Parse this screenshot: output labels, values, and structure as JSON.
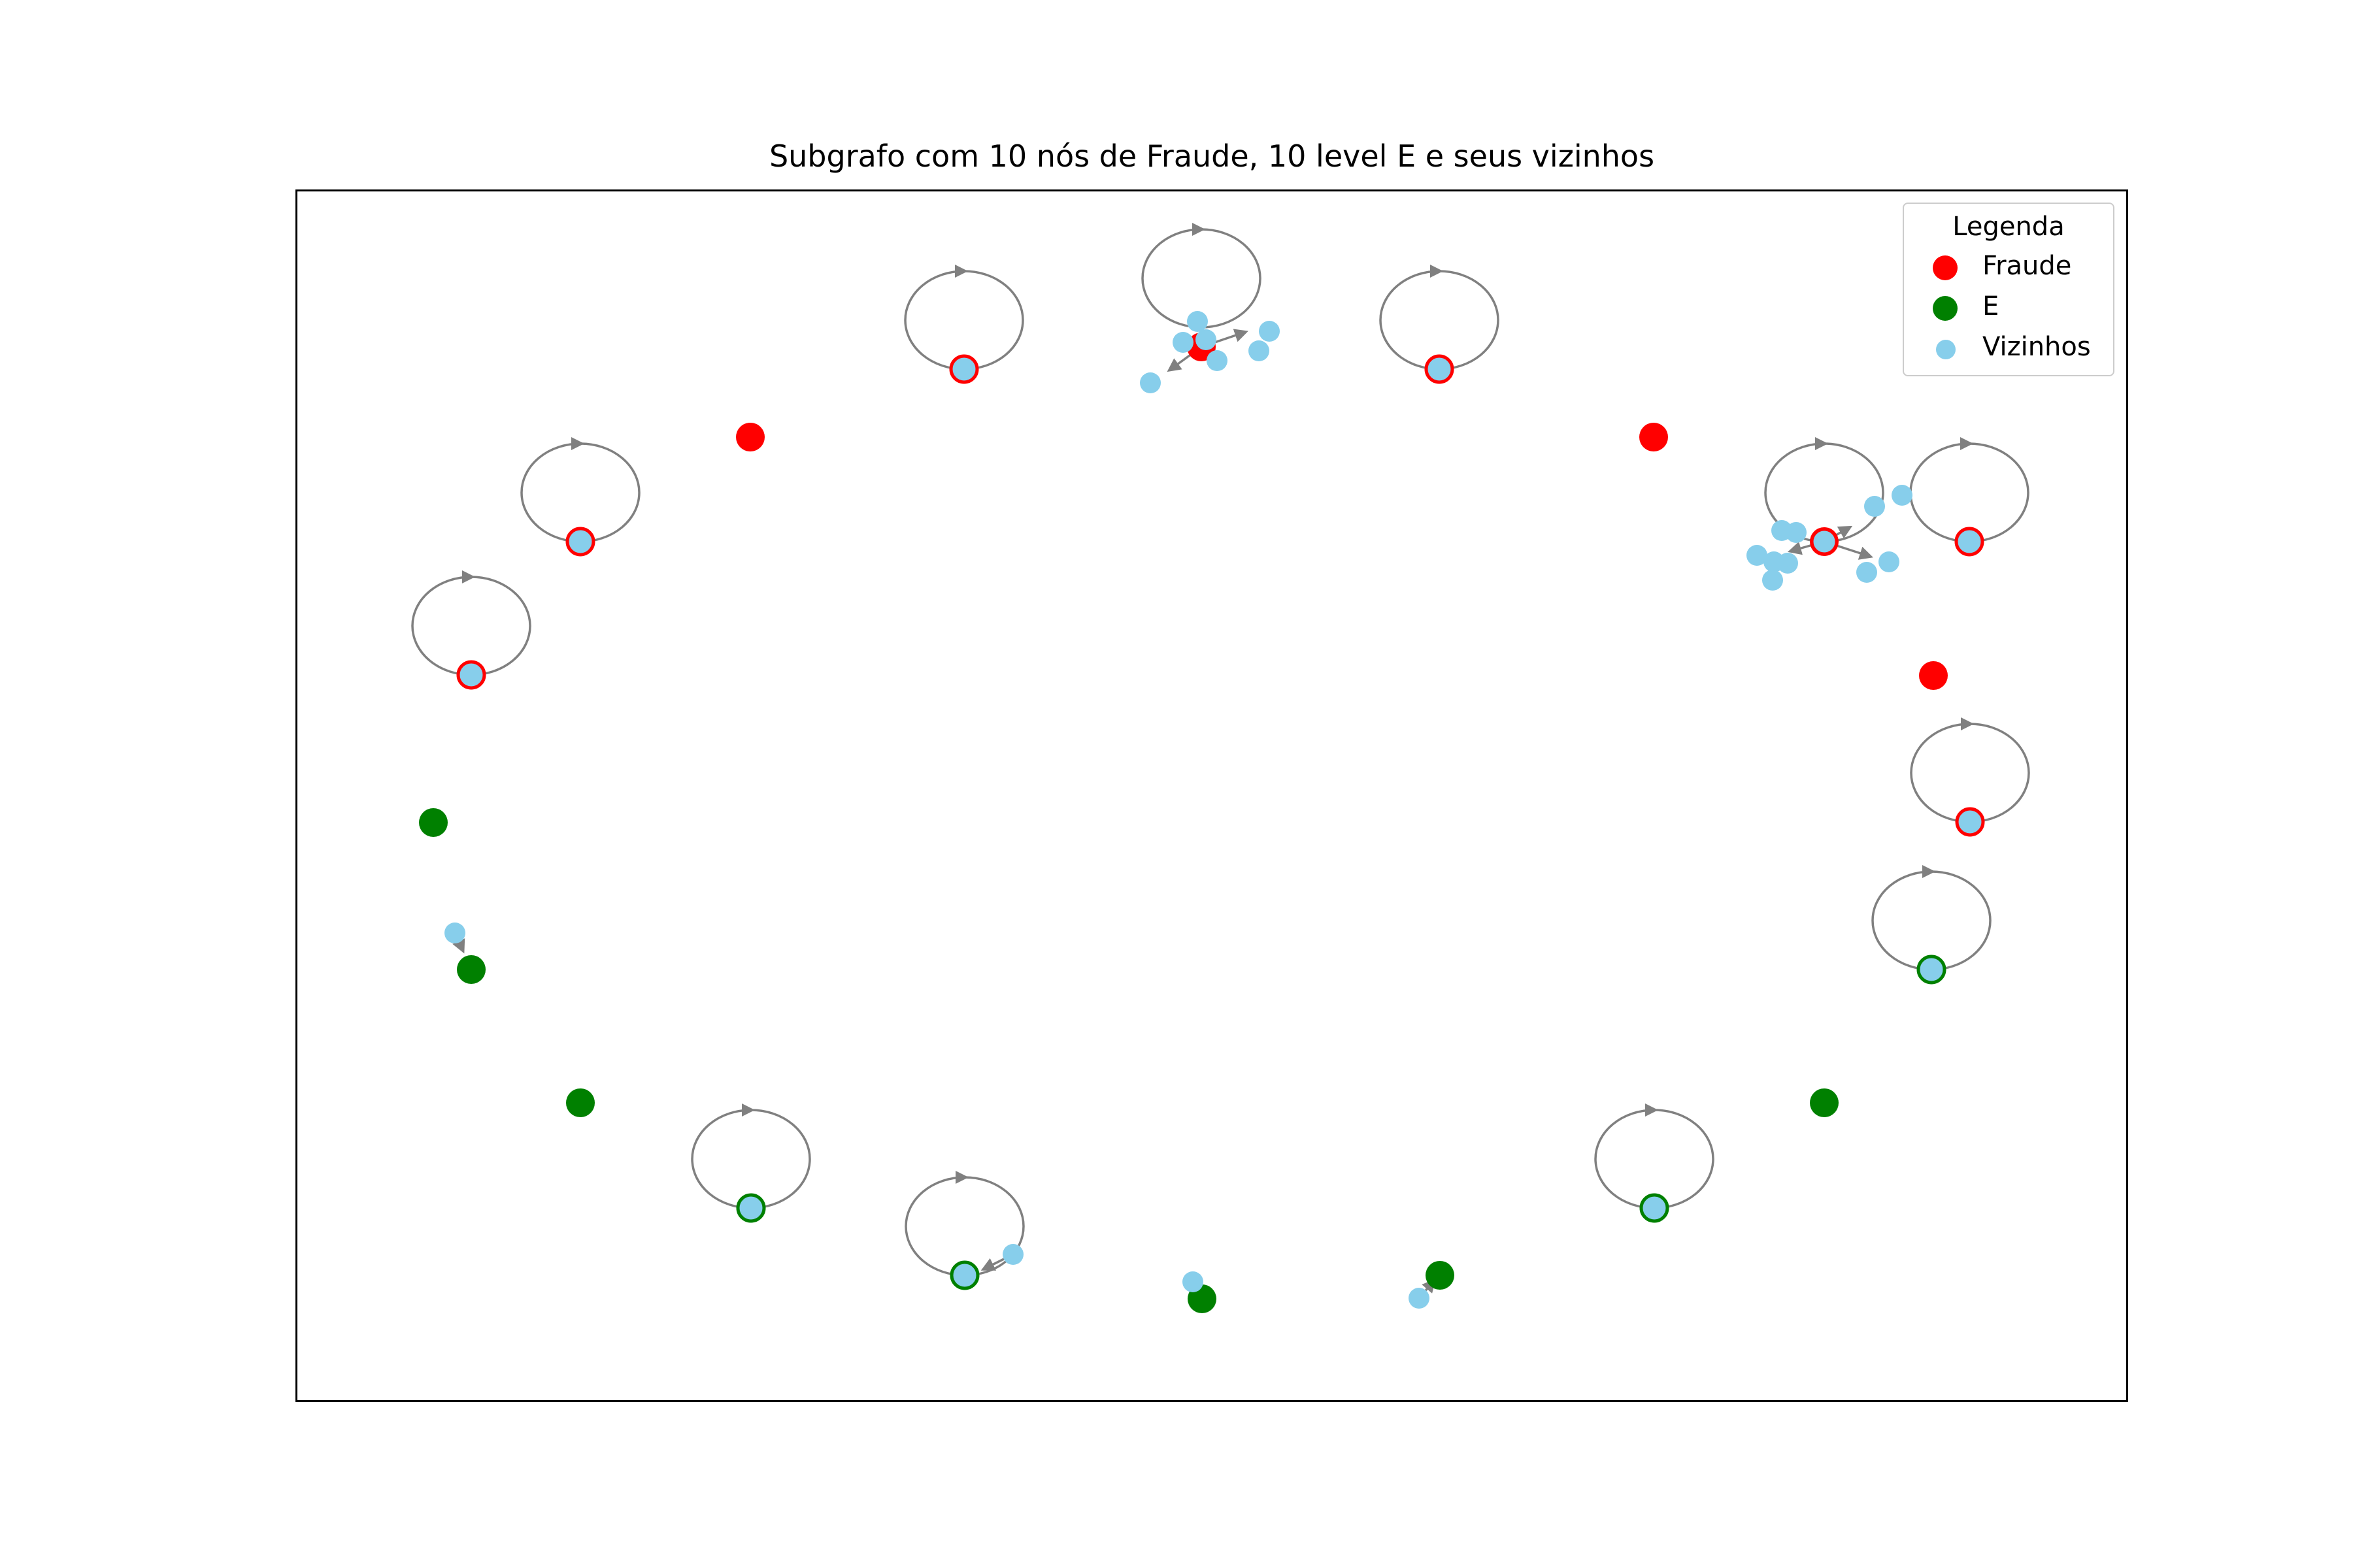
{
  "title": "Subgrafo com 10 nós de Fraude, 10 level E e seus vizinhos",
  "legend": {
    "title": "Legenda",
    "entries": [
      {
        "label": "Fraude",
        "color": "#ff0000"
      },
      {
        "label": "E",
        "color": "#008000"
      },
      {
        "label": "Vizinhos",
        "color": "#87ceeb"
      }
    ]
  },
  "colors": {
    "fraude": "#ff0000",
    "e_level": "#008000",
    "vizinhos": "#87ceeb",
    "edge": "#808080"
  }
}
